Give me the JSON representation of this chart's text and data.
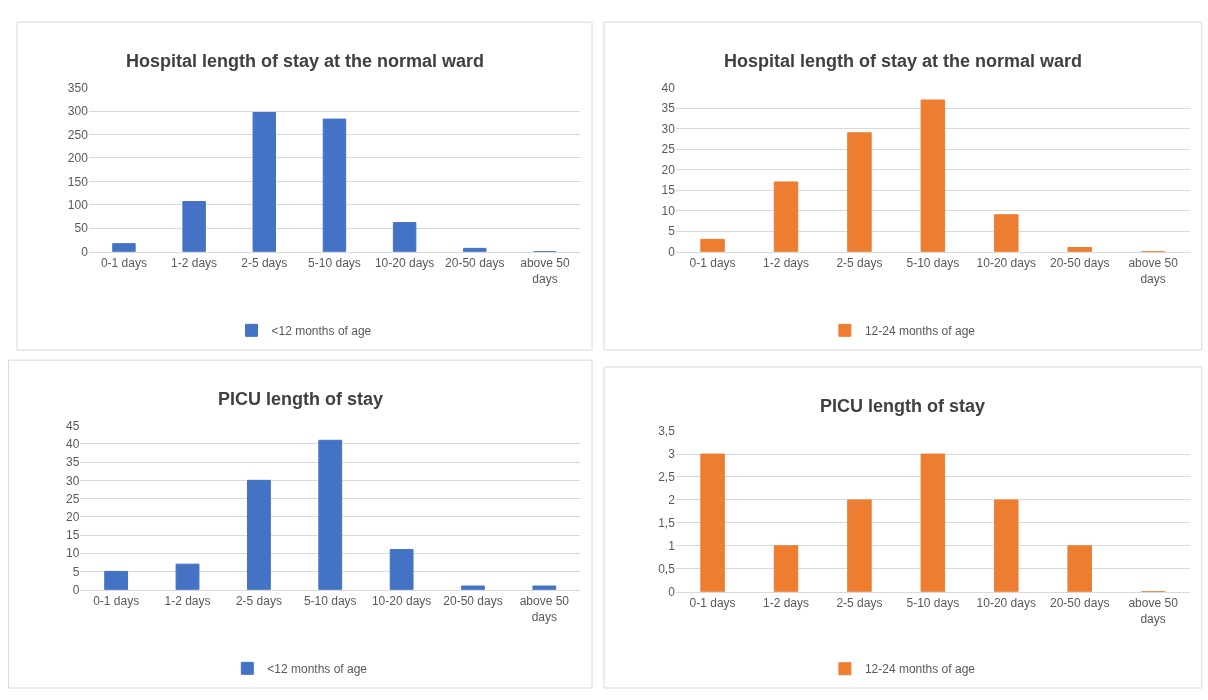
{
  "chart_data": [
    {
      "type": "bar",
      "title": "Hospital length of stay at the normal ward",
      "categories": [
        "0-1 days",
        "1-2 days",
        "2-5 days",
        "5-10 days",
        "10-20 days",
        "20-50 days",
        "above 50 days"
      ],
      "series": [
        {
          "name": "<12 months of age",
          "color": "#4472c4",
          "values": [
            17,
            107,
            297,
            283,
            62,
            7,
            0
          ]
        }
      ],
      "ylim": [
        0,
        350
      ],
      "yticks": [
        0,
        50,
        100,
        150,
        200,
        250,
        300,
        350
      ],
      "grid": "y",
      "legend": "bottom"
    },
    {
      "type": "bar",
      "title": "Hospital length of stay at the normal ward",
      "categories": [
        "0-1 days",
        "1-2 days",
        "2-5 days",
        "5-10 days",
        "10-20 days",
        "20-50 days",
        "above 50 days"
      ],
      "series": [
        {
          "name": "12-24 months of age",
          "color": "#ed7d31",
          "values": [
            3,
            17,
            29,
            37,
            9,
            1,
            0
          ]
        }
      ],
      "ylim": [
        0,
        40
      ],
      "yticks": [
        0,
        5,
        10,
        15,
        20,
        25,
        30,
        35,
        40
      ],
      "grid": "y",
      "legend": "bottom"
    },
    {
      "type": "bar",
      "title": "PICU length of stay",
      "categories": [
        "0-1 days",
        "1-2 days",
        "2-5 days",
        "5-10 days",
        "10-20 days",
        "20-50 days",
        "above 50 days"
      ],
      "series": [
        {
          "name": "<12 months of age",
          "color": "#4472c4",
          "values": [
            5,
            7,
            30,
            41,
            11,
            1,
            1
          ]
        }
      ],
      "ylim": [
        0,
        45
      ],
      "yticks": [
        0,
        5,
        10,
        15,
        20,
        25,
        30,
        35,
        40,
        45
      ],
      "grid": "y",
      "legend": "bottom"
    },
    {
      "type": "bar",
      "title": "PICU length of stay",
      "categories": [
        "0-1 days",
        "1-2 days",
        "2-5 days",
        "5-10 days",
        "10-20 days",
        "20-50 days",
        "above 50 days"
      ],
      "series": [
        {
          "name": "12-24 months of age",
          "color": "#ed7d31",
          "values": [
            3,
            1,
            2,
            3,
            2,
            1,
            0
          ]
        }
      ],
      "ylim": [
        0,
        3.5
      ],
      "yticks": [
        0,
        {
          "value": 0.5,
          "label": "0,5"
        },
        1,
        {
          "value": 1.5,
          "label": "1,5"
        },
        2,
        {
          "value": 2.5,
          "label": "2,5"
        },
        3,
        {
          "value": 3.5,
          "label": "3,5"
        }
      ],
      "grid": "y",
      "legend": "bottom"
    }
  ]
}
